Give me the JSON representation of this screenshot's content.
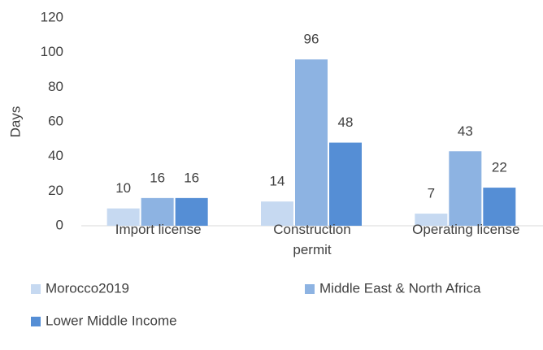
{
  "chart_data": {
    "type": "bar",
    "y_label": "Days",
    "categories": [
      "Import license",
      "Construction permit",
      "Operating license"
    ],
    "series": [
      {
        "name": "Morocco2019",
        "color": "#c6d9f1",
        "values": [
          10,
          14,
          7
        ]
      },
      {
        "name": "Middle East & North Africa",
        "color": "#8db3e2",
        "values": [
          16,
          96,
          43
        ]
      },
      {
        "name": "Lower Middle Income",
        "color": "#558ed5",
        "values": [
          16,
          48,
          22
        ]
      }
    ],
    "ylim": [
      0,
      120
    ],
    "yticks": [
      0,
      20,
      40,
      60,
      80,
      100,
      120
    ],
    "grid": false
  }
}
